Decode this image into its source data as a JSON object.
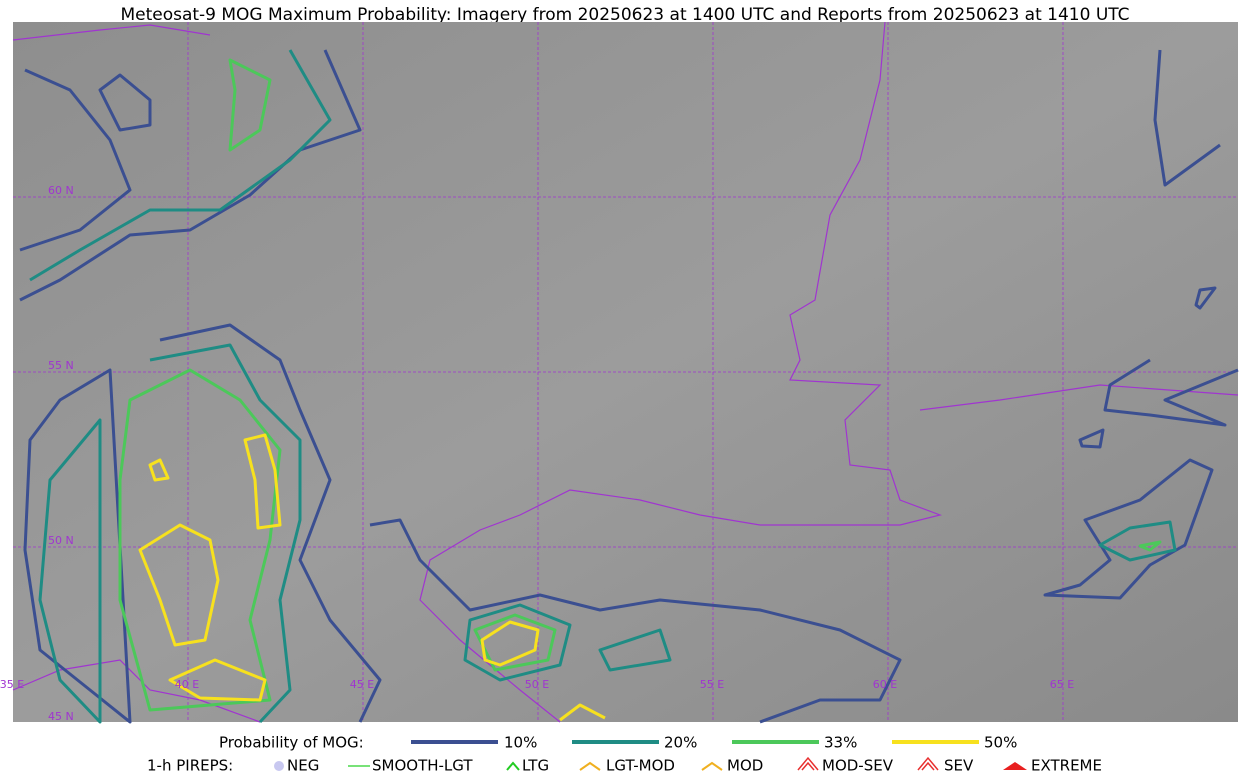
{
  "title": "Meteosat-9 MOG Maximum Probability: Imagery from 20250623 at 1400 UTC and Reports from 20250623 at 1410 UTC",
  "map": {
    "lat_labels": [
      "60 N",
      "55 N",
      "50 N",
      "45 N"
    ],
    "lon_labels": [
      "35 E",
      "40 E",
      "45 E",
      "50 E",
      "55 E",
      "60 E",
      "65 E"
    ]
  },
  "legend": {
    "probability": {
      "label": "Probability of MOG:",
      "items": [
        "10%",
        "20%",
        "33%",
        "50%"
      ]
    },
    "pireps": {
      "label": "1-h PIREPS:",
      "items": [
        "NEG",
        "SMOOTH-LGT",
        "LTG",
        "LGT-MOD",
        "MOD",
        "MOD-SEV",
        "SEV",
        "EXTREME"
      ]
    }
  }
}
